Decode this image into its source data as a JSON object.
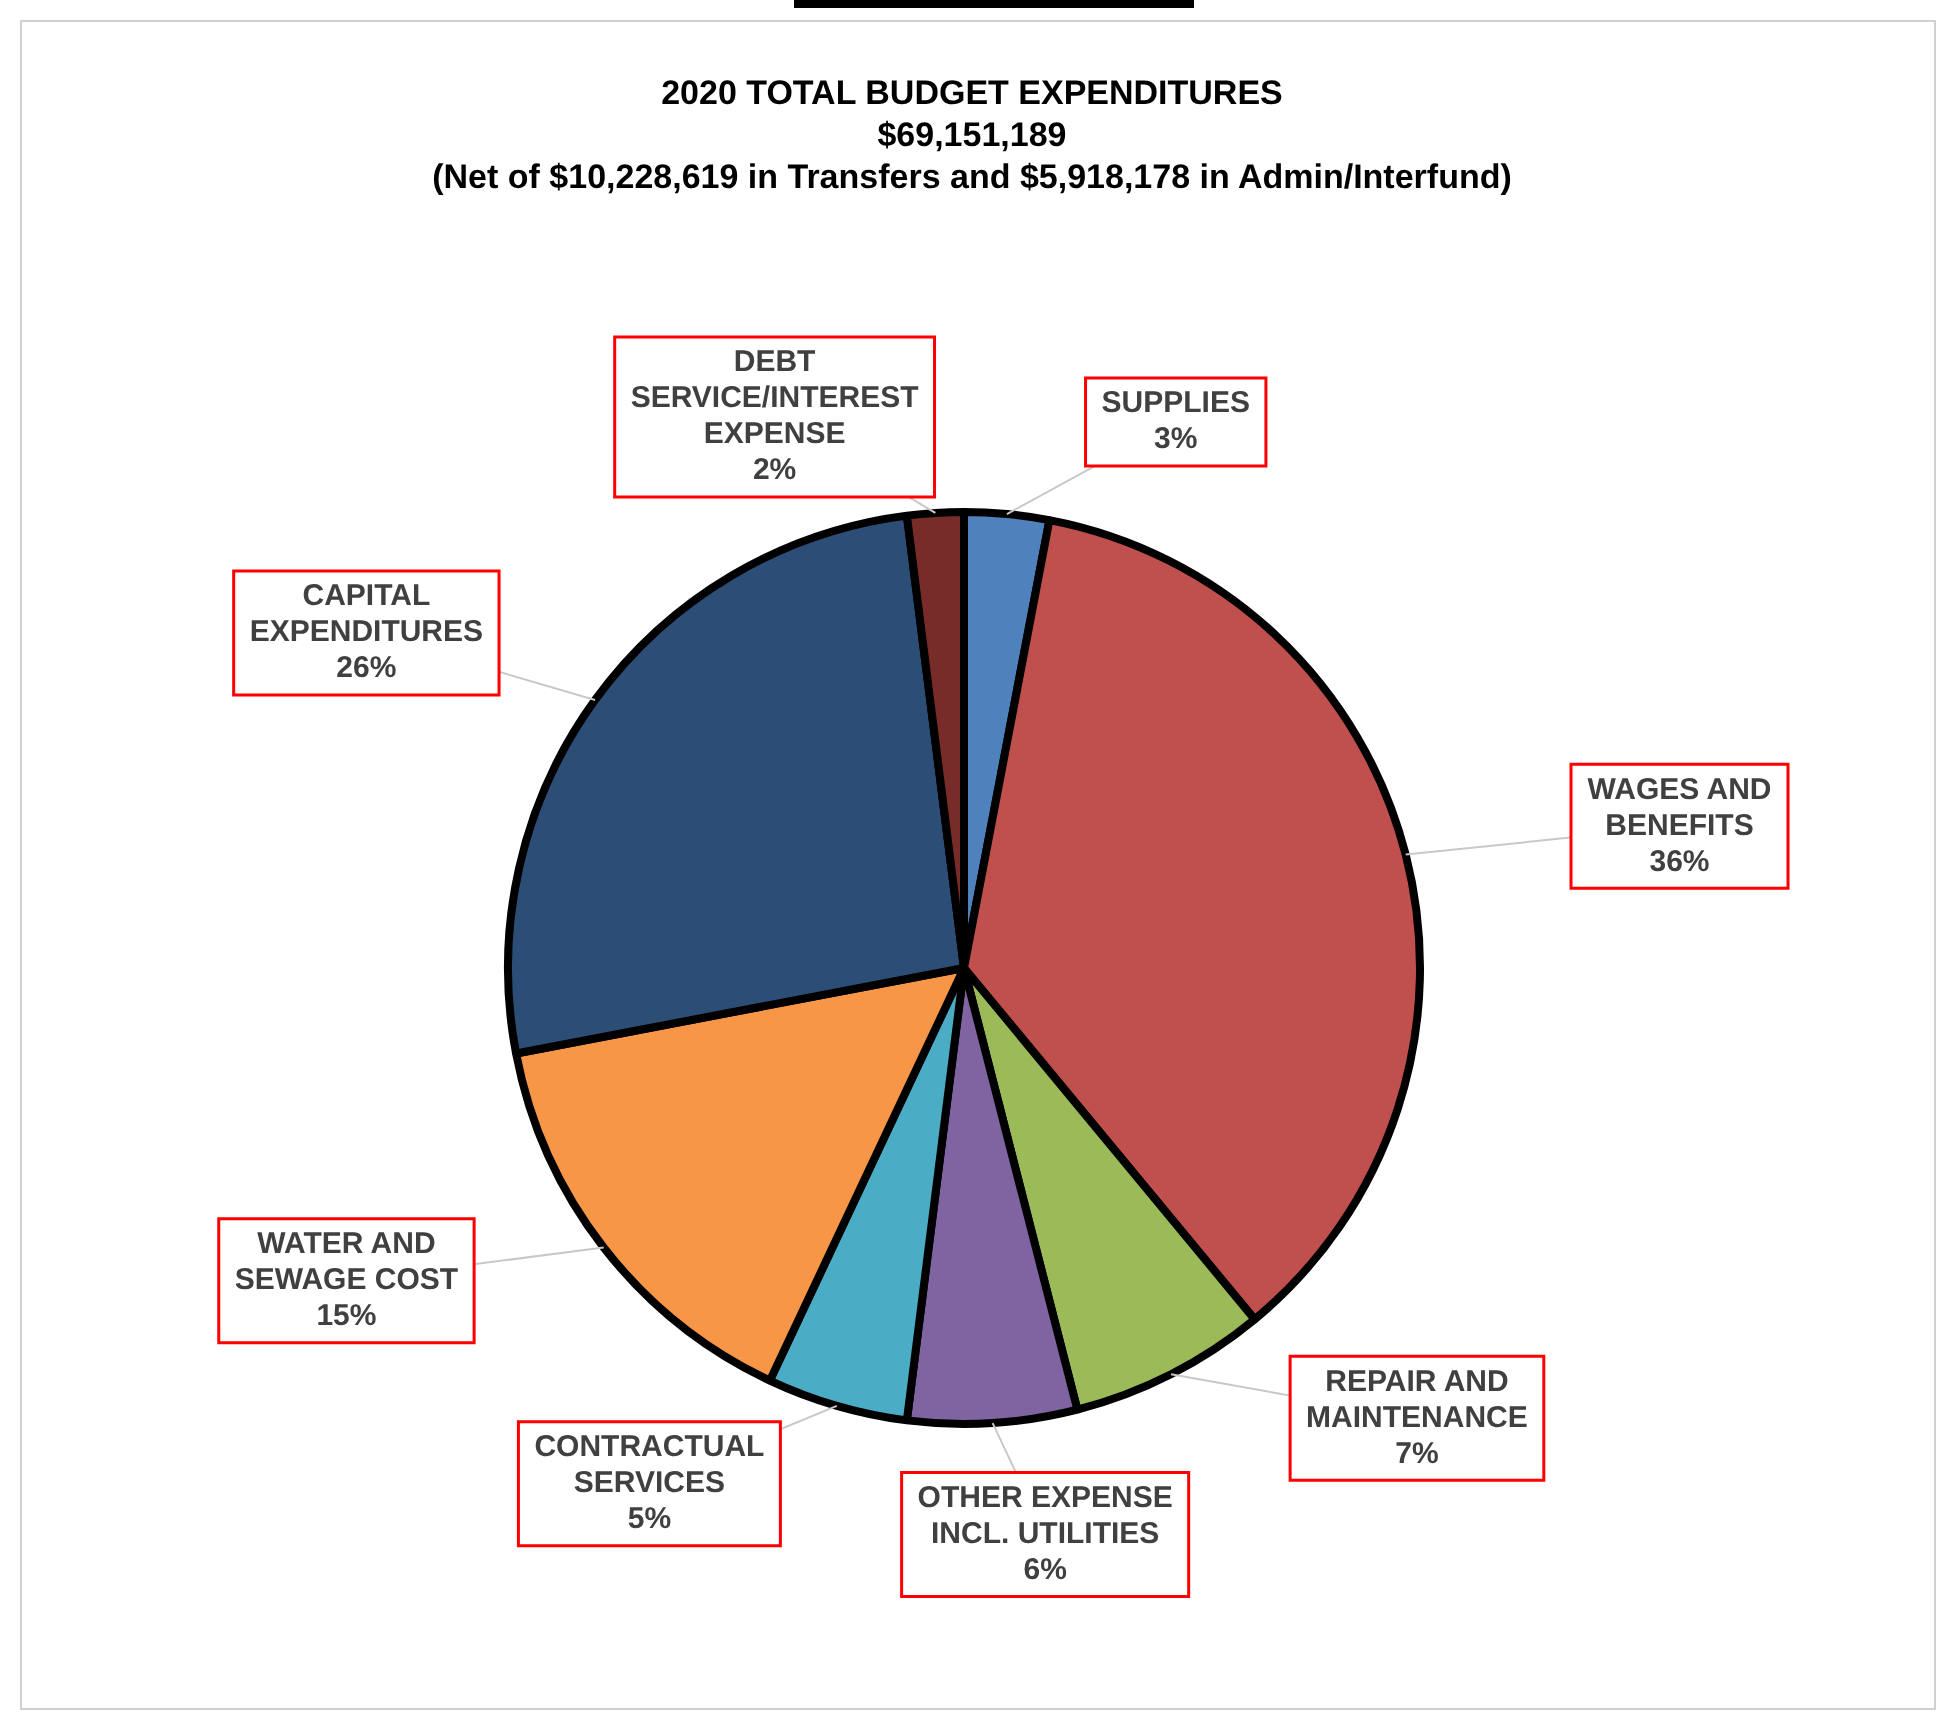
{
  "chart_data": {
    "type": "pie",
    "title": "2020 TOTAL BUDGET EXPENDITURES",
    "subtitle": "$69,151,189",
    "annotations": [
      "(Net of $10,228,619 in Transfers and $5,918,178 in Admin/Interfund)"
    ],
    "categories": [
      "SUPPLIES",
      "WAGES AND BENEFITS",
      "REPAIR AND MAINTENANCE",
      "OTHER EXPENSE INCL. UTILITIES",
      "CONTRACTUAL SERVICES",
      "WATER AND SEWAGE COST",
      "CAPITAL EXPENDITURES",
      "DEBT SERVICE/INTEREST EXPENSE"
    ],
    "values": [
      3,
      36,
      7,
      6,
      5,
      15,
      26,
      2
    ],
    "value_labels": [
      "3%",
      "36%",
      "7%",
      "6%",
      "5%",
      "15%",
      "26%",
      "2%"
    ],
    "colors": [
      "#4f81bd",
      "#c0504d",
      "#9bbb59",
      "#8064a2",
      "#4bacc6",
      "#f79646",
      "#2c4d75",
      "#772c2a"
    ],
    "legend": false
  }
}
